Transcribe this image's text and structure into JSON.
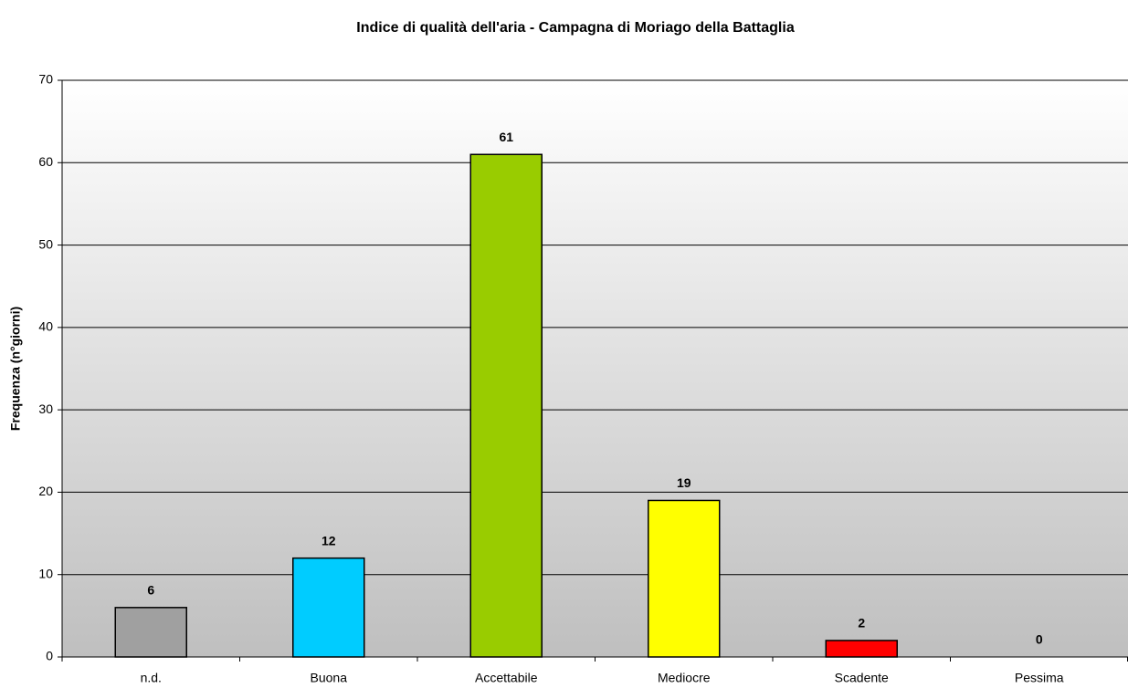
{
  "chart_data": {
    "type": "bar",
    "title": "Indice di qualità dell'aria - Campagna di Moriago della Battaglia",
    "y_label": "Frequenza (n°giorni)",
    "categories": [
      "n.d.",
      "Buona",
      "Accettabile",
      "Mediocre",
      "Scadente",
      "Pessima"
    ],
    "values": [
      6,
      12,
      61,
      19,
      2,
      0
    ],
    "colors": [
      "#a0a0a0",
      "#00ccff",
      "#99cc00",
      "#ffff00",
      "#ff0000",
      "#800080"
    ],
    "ylim": [
      0,
      70
    ],
    "yticks": [
      0,
      10,
      20,
      30,
      40,
      50,
      60,
      70
    ],
    "grid": true
  }
}
